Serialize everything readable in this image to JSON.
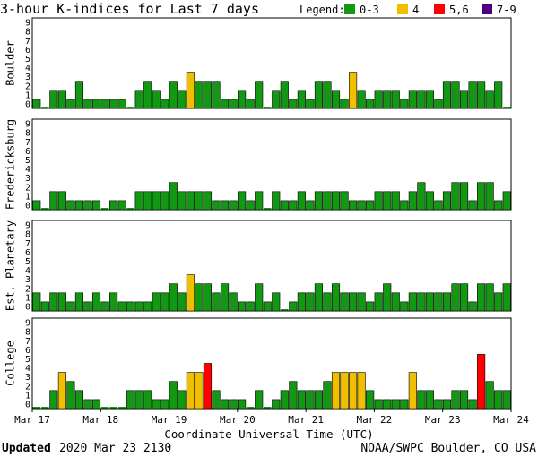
{
  "chart_data": {
    "type": "bar",
    "title": "3-hour K-indices for Last 7 days",
    "legend": {
      "label": "Legend:",
      "items": [
        {
          "label": "0-3",
          "color": "#129812"
        },
        {
          "label": "4",
          "color": "#f0c000"
        },
        {
          "label": "5,6",
          "color": "#ff0000"
        },
        {
          "label": "7-9",
          "color": "#4b0082"
        }
      ]
    },
    "ylim": [
      0,
      9
    ],
    "yticks": [
      "0",
      "1",
      "2",
      "3",
      "4",
      "5",
      "6",
      "7",
      "8",
      "9"
    ],
    "xlabel": "Coordinate Universal Time (UTC)",
    "xtick_labels": [
      "Mar 17",
      "Mar 18",
      "Mar 19",
      "Mar 20",
      "Mar 21",
      "Mar 22",
      "Mar 23",
      "Mar 24"
    ],
    "bars_per_panel": 56,
    "panels": [
      {
        "name": "Boulder",
        "values": [
          1,
          0,
          2,
          2,
          1,
          3,
          1,
          1,
          1,
          1,
          1,
          0,
          2,
          3,
          2,
          1,
          3,
          2,
          4,
          3,
          3,
          3,
          1,
          1,
          2,
          1,
          3,
          0,
          2,
          3,
          1,
          2,
          1,
          3,
          3,
          2,
          1,
          4,
          2,
          1,
          2,
          2,
          2,
          1,
          2,
          2,
          2,
          1,
          3,
          3,
          2,
          3,
          3,
          2,
          3,
          0
        ]
      },
      {
        "name": "Fredericksburg",
        "values": [
          1,
          0,
          2,
          2,
          1,
          1,
          1,
          1,
          0,
          1,
          1,
          0,
          2,
          2,
          2,
          2,
          3,
          2,
          2,
          2,
          2,
          1,
          1,
          1,
          2,
          1,
          2,
          0,
          2,
          1,
          1,
          2,
          1,
          2,
          2,
          2,
          2,
          1,
          1,
          1,
          2,
          2,
          2,
          1,
          2,
          3,
          2,
          1,
          2,
          3,
          3,
          1,
          3,
          3,
          1,
          2
        ]
      },
      {
        "name": "Est. Planetary",
        "values": [
          2,
          1,
          2,
          2,
          1,
          2,
          1,
          2,
          1,
          2,
          1,
          1,
          1,
          1,
          2,
          2,
          3,
          2,
          4,
          3,
          3,
          2,
          3,
          2,
          1,
          1,
          3,
          1,
          2,
          0,
          1,
          2,
          2,
          3,
          2,
          3,
          2,
          2,
          2,
          1,
          2,
          3,
          2,
          1,
          2,
          2,
          2,
          2,
          2,
          3,
          3,
          1,
          3,
          3,
          2,
          3
        ]
      },
      {
        "name": "College",
        "values": [
          0,
          0,
          2,
          4,
          3,
          2,
          1,
          1,
          0,
          0,
          0,
          2,
          2,
          2,
          1,
          1,
          3,
          2,
          4,
          4,
          5,
          2,
          1,
          1,
          1,
          0,
          2,
          0,
          1,
          2,
          3,
          2,
          2,
          2,
          3,
          4,
          4,
          4,
          4,
          2,
          1,
          1,
          1,
          1,
          4,
          2,
          2,
          1,
          1,
          2,
          2,
          1,
          6,
          3,
          2,
          2
        ]
      }
    ]
  },
  "footer": {
    "updated_label": "Updated",
    "updated_time": "2020 Mar 23 2130",
    "credit": "NOAA/SWPC Boulder, CO USA"
  }
}
